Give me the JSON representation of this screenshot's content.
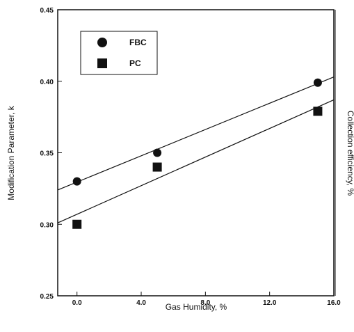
{
  "chart_data": {
    "type": "scatter",
    "xlabel": "Gas Humidity, %",
    "ylabel": "Modification Parameter, k",
    "ylabel_right": "Collection efficiency, %",
    "xlim": [
      -1.2,
      16.0
    ],
    "ylim": [
      0.25,
      0.45
    ],
    "x_ticks": [
      0.0,
      4.0,
      8.0,
      12.0,
      16.0
    ],
    "x_tick_labels": [
      "0.0",
      "4.0",
      "8.0",
      "12.0",
      "16.0"
    ],
    "y_ticks": [
      0.25,
      0.3,
      0.35,
      0.4,
      0.45
    ],
    "y_tick_labels": [
      "0.25",
      "0.30",
      "0.35",
      "0.40",
      "0.45"
    ],
    "grid": false,
    "legend_position": "top-left",
    "series": [
      {
        "name": "FBC",
        "marker": "circle",
        "color": "#111111",
        "x": [
          0.0,
          5.0,
          15.0
        ],
        "y": [
          0.33,
          0.35,
          0.399
        ],
        "fit_line": {
          "x": [
            -1.2,
            16.0
          ],
          "y": [
            0.324,
            0.403
          ]
        }
      },
      {
        "name": "PC",
        "marker": "square",
        "color": "#111111",
        "x": [
          0.0,
          5.0,
          15.0
        ],
        "y": [
          0.3,
          0.34,
          0.379
        ],
        "fit_line": {
          "x": [
            -1.2,
            16.0
          ],
          "y": [
            0.301,
            0.387
          ]
        }
      }
    ]
  }
}
